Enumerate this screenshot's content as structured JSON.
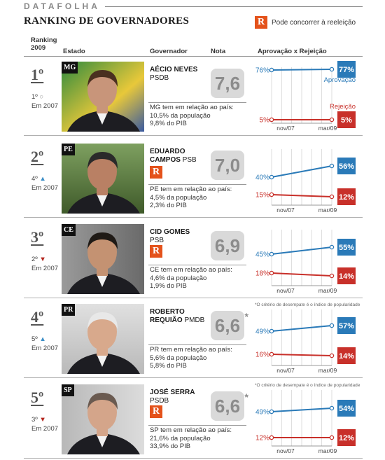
{
  "brand": "DATAFOLHA",
  "title": "RANKING DE GOVERNADORES",
  "legend": {
    "badge": "R",
    "text": "Pode concorrer à reeleição"
  },
  "headers": {
    "ranking": "Ranking",
    "ranking_year": "2009",
    "estado": "Estado",
    "governador": "Governador",
    "nota": "Nota",
    "aprovacao": "Aprovação x Rejeição"
  },
  "colors": {
    "approval": "#2a7ab8",
    "rejection": "#c8302a",
    "badge": "#e4521b"
  },
  "chart_data": {
    "type": "line",
    "x": [
      "nov/07",
      "mar/09"
    ],
    "series_labels": {
      "approval": "Aprovação",
      "rejection": "Rejeição"
    },
    "footnote": "*O critério de desempate é o índice de popularidade",
    "rows": [
      {
        "rank": "1º",
        "state": "MG",
        "prev_rank": "1º",
        "prev_year": "Em 2007",
        "trend": "same",
        "name": "AÉCIO NEVES",
        "party": "PSDB",
        "reelection": false,
        "nota": "7,6",
        "tie": false,
        "stats_title": "MG tem em relação ao país:",
        "pop": "10,5% da população",
        "pib": "9,8% do PIB",
        "approval": [
          76,
          77
        ],
        "rejection": [
          5,
          5
        ],
        "approval_start": "76%",
        "approval_end": "77%",
        "rejection_start": "5%",
        "rejection_end": "5%",
        "show_labels": true
      },
      {
        "rank": "2º",
        "state": "PE",
        "prev_rank": "4º",
        "prev_year": "Em 2007",
        "trend": "up",
        "name": "EDUARDO",
        "name2": "CAMPOS",
        "party": "PSB",
        "reelection": true,
        "nota": "7,0",
        "tie": false,
        "stats_title": "PE tem em relação ao país:",
        "pop": "4,5% da população",
        "pib": "2,3% do PIB",
        "approval": [
          40,
          56
        ],
        "rejection": [
          15,
          12
        ],
        "approval_start": "40%",
        "approval_end": "56%",
        "rejection_start": "15%",
        "rejection_end": "12%",
        "show_labels": false
      },
      {
        "rank": "3º",
        "state": "CE",
        "prev_rank": "2º",
        "prev_year": "Em 2007",
        "trend": "down",
        "name": "CID GOMES",
        "party": "PSB",
        "reelection": true,
        "nota": "6,9",
        "tie": false,
        "stats_title": "CE tem em relação ao país:",
        "pop": "4,6% da população",
        "pib": "1,9% do PIB",
        "approval": [
          45,
          55
        ],
        "rejection": [
          18,
          14
        ],
        "approval_start": "45%",
        "approval_end": "55%",
        "rejection_start": "18%",
        "rejection_end": "14%",
        "show_labels": false
      },
      {
        "rank": "4º",
        "state": "PR",
        "prev_rank": "5º",
        "prev_year": "Em 2007",
        "trend": "up",
        "name": "ROBERTO",
        "name2": "REQUIÃO",
        "party": "PMDB",
        "reelection": false,
        "nota": "6,6",
        "tie": true,
        "stats_title": "PR tem em relação ao país:",
        "pop": "5,6% da população",
        "pib": "5,8% do PIB",
        "approval": [
          49,
          57
        ],
        "rejection": [
          16,
          14
        ],
        "approval_start": "49%",
        "approval_end": "57%",
        "rejection_start": "16%",
        "rejection_end": "14%",
        "show_labels": false
      },
      {
        "rank": "5º",
        "state": "SP",
        "prev_rank": "3º",
        "prev_year": "Em 2007",
        "trend": "down",
        "name": "JOSÉ SERRA",
        "party": "PSDB",
        "reelection": true,
        "nota": "6,6",
        "tie": true,
        "stats_title": "SP tem em relação ao país:",
        "pop": "21,6% da população",
        "pib": "33,9% do PIB",
        "approval": [
          49,
          54
        ],
        "rejection": [
          12,
          12
        ],
        "approval_start": "49%",
        "approval_end": "54%",
        "rejection_start": "12%",
        "rejection_end": "12%",
        "show_labels": false
      }
    ]
  }
}
